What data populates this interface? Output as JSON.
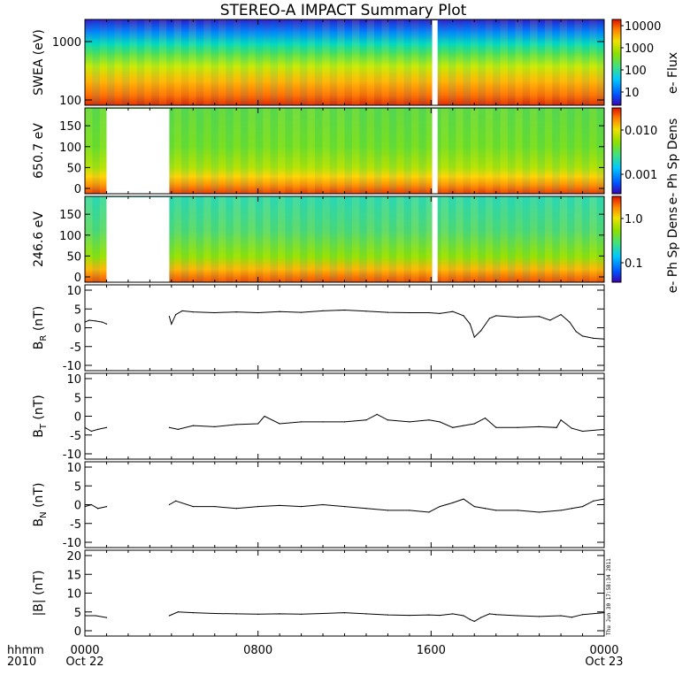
{
  "title": "STEREO-A IMPACT Summary Plot",
  "xaxis": {
    "row_label_1": "hhmm",
    "row_label_2": "2010",
    "ticks": [
      {
        "t": 0,
        "line1": "0000",
        "line2": "Oct 22"
      },
      {
        "t": 8,
        "line1": "0800",
        "line2": ""
      },
      {
        "t": 16,
        "line1": "1600",
        "line2": ""
      },
      {
        "t": 24,
        "line1": "0000",
        "line2": "Oct 23"
      }
    ]
  },
  "stamp": "Thu Jun 30 17:58:34 2011",
  "spectrograms": [
    {
      "name": "swea",
      "ylabel": "SWEA (eV)",
      "yscale": "log",
      "yticks": [
        "1000",
        "100"
      ],
      "colorbar_label": "e- Flux",
      "colorbar_ticks": [
        "10000",
        "1000",
        "100",
        "10"
      ],
      "data_gaps": [
        [
          16.05,
          16.3
        ]
      ],
      "description_levels": "flux highest at low energy (red) decreasing to blue at ~2000 eV"
    },
    {
      "name": "pad-650",
      "ylabel": "650.7 eV",
      "yscale": "linear",
      "yticks": [
        "0",
        "50",
        "100",
        "150"
      ],
      "colorbar_label": "e- Ph Sp Dens",
      "colorbar_ticks": [
        "0.010",
        "0.001"
      ],
      "data_gaps": [
        [
          1.0,
          3.9
        ],
        [
          16.05,
          16.3
        ]
      ]
    },
    {
      "name": "pad-246",
      "ylabel": "246.6 eV",
      "yscale": "linear",
      "yticks": [
        "0",
        "50",
        "100",
        "150"
      ],
      "colorbar_label": "e- Ph Sp Dens",
      "colorbar_ticks": [
        "1.0",
        "0.1"
      ],
      "data_gaps": [
        [
          1.0,
          3.9
        ],
        [
          16.05,
          16.3
        ]
      ]
    }
  ],
  "chart_data": [
    {
      "type": "line",
      "ylabel": "BR (nT)",
      "ylabel_main": "B",
      "ylabel_sub": "R",
      "ylabel_unit": " (nT)",
      "ylim": [
        -10,
        10
      ],
      "yticks": [
        "10",
        "5",
        "0",
        "-5",
        "-10"
      ],
      "x": [
        0,
        0.2,
        0.5,
        0.8,
        1.0,
        3.9,
        4.0,
        4.2,
        4.5,
        5,
        6,
        7,
        8,
        9,
        10,
        11,
        12,
        13,
        14,
        15,
        15.9,
        16.4,
        17,
        17.5,
        17.8,
        18.0,
        18.3,
        18.7,
        19,
        20,
        21,
        21.5,
        22,
        22.4,
        22.7,
        23,
        23.5,
        24
      ],
      "y": [
        1.5,
        2,
        1.8,
        1.5,
        1,
        3,
        1,
        3.5,
        4.5,
        4.2,
        4,
        4.2,
        4,
        4.3,
        4.1,
        4.5,
        4.7,
        4.4,
        4.1,
        4,
        4,
        3.8,
        4.3,
        3.2,
        1,
        -2.5,
        -0.8,
        2.5,
        3.2,
        2.8,
        3,
        2,
        3.5,
        1.5,
        -1,
        -2.2,
        -2.8,
        -3
      ]
    },
    {
      "type": "line",
      "ylabel": "BT (nT)",
      "ylabel_main": "B",
      "ylabel_sub": "T",
      "ylabel_unit": " (nT)",
      "ylim": [
        -10,
        10
      ],
      "yticks": [
        "10",
        "5",
        "0",
        "-5",
        "-10"
      ],
      "x": [
        0,
        0.3,
        0.6,
        1.0,
        3.9,
        4.3,
        5,
        6,
        7,
        8,
        8.3,
        9,
        10,
        11,
        12,
        13,
        13.5,
        14,
        15,
        15.9,
        16.4,
        17,
        17.5,
        18,
        18.5,
        19,
        20,
        21,
        21.8,
        22,
        22.5,
        23,
        24
      ],
      "y": [
        -3,
        -4,
        -3.5,
        -3,
        -3,
        -3.5,
        -2.5,
        -2.8,
        -2.2,
        -2,
        0,
        -2,
        -1.5,
        -1.5,
        -1.5,
        -1,
        0.5,
        -1,
        -1.5,
        -1,
        -1.5,
        -3,
        -2.5,
        -2,
        -0.5,
        -3,
        -3,
        -2.8,
        -3,
        -1,
        -3.2,
        -4,
        -3.5
      ]
    },
    {
      "type": "line",
      "ylabel": "BN (nT)",
      "ylabel_main": "B",
      "ylabel_sub": "N",
      "ylabel_unit": " (nT)",
      "ylim": [
        -10,
        10
      ],
      "yticks": [
        "10",
        "5",
        "0",
        "-5",
        "-10"
      ],
      "x": [
        0,
        0.3,
        0.6,
        1.0,
        3.9,
        4.2,
        5,
        6,
        7,
        8,
        9,
        10,
        11,
        12,
        13,
        14,
        15,
        15.9,
        16.4,
        17,
        17.5,
        18,
        18.5,
        19,
        20,
        21,
        22,
        22.5,
        23,
        23.5,
        24
      ],
      "y": [
        -0.5,
        0,
        -1,
        -0.5,
        0,
        1,
        -0.5,
        -0.5,
        -1,
        -0.5,
        -0.2,
        -0.5,
        0,
        -0.5,
        -1,
        -1.5,
        -1.5,
        -2,
        -0.5,
        0.5,
        1.5,
        -0.5,
        -1,
        -1.5,
        -1.5,
        -2,
        -1.5,
        -1,
        -0.5,
        1,
        1.5
      ]
    },
    {
      "type": "line",
      "ylabel": "|B| (nT)",
      "ylabel_main": "|B|",
      "ylabel_sub": "",
      "ylabel_unit": " (nT)",
      "ylim": [
        0,
        20
      ],
      "yticks": [
        "20",
        "15",
        "10",
        "5",
        "0"
      ],
      "x": [
        0,
        0.5,
        1.0,
        3.9,
        4.3,
        5,
        6,
        7,
        8,
        9,
        10,
        11,
        12,
        13,
        14,
        15,
        15.9,
        16.4,
        17,
        17.5,
        17.8,
        18.0,
        18.3,
        18.7,
        19,
        20,
        21,
        22,
        22.5,
        23,
        24
      ],
      "y": [
        4,
        4,
        3.5,
        4,
        5,
        4.8,
        4.6,
        4.5,
        4.4,
        4.5,
        4.4,
        4.6,
        4.8,
        4.5,
        4.2,
        4.1,
        4.2,
        4.1,
        4.5,
        4,
        3,
        2.5,
        3.5,
        4.5,
        4.3,
        4,
        3.8,
        4,
        3.6,
        4.3,
        4.8
      ]
    }
  ]
}
